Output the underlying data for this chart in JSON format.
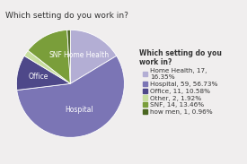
{
  "title": "Which setting do you work in?",
  "legend_title": "Which setting do you\nwork in?",
  "slices": [
    {
      "label": "Home Health, 17,\n16.35%",
      "short_label": "Home Health",
      "value": 17,
      "pct": 16.35,
      "color": "#b3aed4"
    },
    {
      "label": "Hospital, 59, 56.73%",
      "short_label": "Hospital",
      "value": 59,
      "pct": 56.73,
      "color": "#7b75b5"
    },
    {
      "label": "Office, 11, 10.58%",
      "short_label": "Office",
      "value": 11,
      "pct": 10.58,
      "color": "#4e4889"
    },
    {
      "label": "Other, 2, 1.92%",
      "short_label": "Other",
      "value": 2,
      "pct": 1.92,
      "color": "#c8dea0"
    },
    {
      "label": "SNF, 14, 13.46%",
      "short_label": "SNF",
      "value": 14,
      "pct": 13.46,
      "color": "#7a9e3a"
    },
    {
      "label": "how men, 1, 0.96%",
      "short_label": "how men",
      "value": 1,
      "pct": 0.96,
      "color": "#4a6620"
    }
  ],
  "title_fontsize": 6.5,
  "legend_fontsize": 5.2,
  "label_fontsize": 5.5,
  "background_color": "#f0eeee",
  "startangle": 90
}
